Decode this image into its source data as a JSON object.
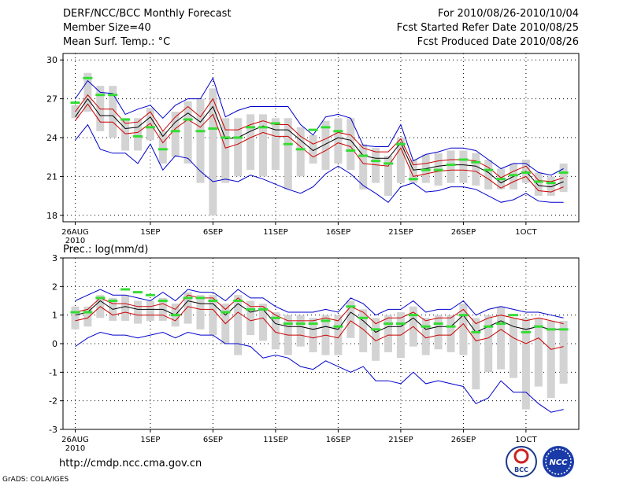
{
  "header": {
    "title": "DERF/NCC/BCC Monthly Forecast",
    "member_size": "Member Size=40",
    "variable": "Mean Surf. Temp.: °C",
    "period": "For 2010/08/26-2010/10/04",
    "started": "Fcst Started Refer Date 2010/08/25",
    "produced": "Fcst Produced Date 2010/08/26"
  },
  "footer": {
    "url": "http://cmdp.ncc.cma.gov.cn",
    "credit": "GrADS: COLA/IGES"
  },
  "logos": {
    "bcc": "BCC",
    "ncc": "NCC"
  },
  "colors": {
    "ensemble": "#000000",
    "spread": "#cc0000",
    "extreme": "#0000cc",
    "box": "#d3d3d3",
    "median": "#33dd33"
  },
  "chart_data": [
    {
      "type": "line",
      "title": "Mean Surf. Temp.: °C",
      "ylim": [
        17.5,
        30.5
      ],
      "yticks": [
        18,
        21,
        24,
        27,
        30
      ],
      "xticks": [
        {
          "day": 1,
          "label": "26AUG",
          "sub": "2010"
        },
        {
          "day": 7,
          "label": "1SEP"
        },
        {
          "day": 12,
          "label": "6SEP"
        },
        {
          "day": 17,
          "label": "11SEP"
        },
        {
          "day": 22,
          "label": "16SEP"
        },
        {
          "day": 27,
          "label": "21SEP"
        },
        {
          "day": 32,
          "label": "26SEP"
        },
        {
          "day": 37,
          "label": "1OCT"
        }
      ],
      "days": 40,
      "series": [
        {
          "name": "ensemble mean",
          "values": [
            25.6,
            27.0,
            25.7,
            25.7,
            24.7,
            24.8,
            25.6,
            24.1,
            25.2,
            25.9,
            25.2,
            26.4,
            23.9,
            24.0,
            24.5,
            24.9,
            24.6,
            24.6,
            23.8,
            23.0,
            23.5,
            24.0,
            23.8,
            22.6,
            22.4,
            22.4,
            23.6,
            21.5,
            21.6,
            21.8,
            21.9,
            21.9,
            21.8,
            21.3,
            20.5,
            21.0,
            21.4,
            20.3,
            20.2,
            20.6
          ]
        },
        {
          "name": "upper spread",
          "values": [
            26.0,
            27.3,
            26.2,
            26.2,
            25.1,
            25.2,
            26.0,
            24.5,
            25.6,
            26.4,
            25.6,
            27.0,
            24.6,
            24.6,
            25.0,
            25.3,
            25.0,
            25.0,
            24.1,
            23.5,
            23.9,
            24.4,
            24.2,
            23.2,
            22.9,
            22.9,
            23.9,
            21.9,
            22.0,
            22.2,
            22.3,
            22.3,
            22.2,
            21.7,
            20.9,
            21.4,
            21.8,
            20.7,
            20.6,
            20.9
          ]
        },
        {
          "name": "lower spread",
          "values": [
            25.3,
            26.6,
            25.2,
            25.2,
            24.3,
            24.4,
            25.1,
            23.6,
            24.7,
            25.4,
            24.8,
            25.8,
            23.2,
            23.5,
            24.0,
            24.4,
            24.1,
            24.1,
            23.3,
            22.5,
            23.0,
            23.6,
            23.3,
            22.0,
            21.9,
            21.8,
            23.2,
            21.0,
            21.2,
            21.4,
            21.5,
            21.5,
            21.4,
            20.8,
            20.1,
            20.6,
            21.0,
            19.9,
            19.8,
            20.2
          ]
        },
        {
          "name": "maximum",
          "values": [
            27.0,
            28.4,
            27.5,
            27.4,
            25.8,
            26.2,
            26.5,
            25.5,
            26.5,
            27.0,
            27.0,
            28.6,
            25.6,
            26.1,
            26.4,
            26.4,
            26.4,
            26.4,
            25.0,
            24.2,
            25.6,
            25.8,
            25.5,
            23.4,
            23.3,
            23.3,
            25.0,
            22.2,
            22.7,
            22.9,
            23.2,
            23.2,
            23.0,
            22.3,
            21.6,
            22.0,
            22.0,
            21.3,
            21.1,
            21.6
          ]
        },
        {
          "name": "minimum",
          "values": [
            23.8,
            25.0,
            23.1,
            22.8,
            22.8,
            22.0,
            23.5,
            21.5,
            22.6,
            22.4,
            21.4,
            20.6,
            20.8,
            20.6,
            21.1,
            20.8,
            20.4,
            20.0,
            19.7,
            20.2,
            21.2,
            21.8,
            21.2,
            20.3,
            19.7,
            19.0,
            20.2,
            20.5,
            19.8,
            19.9,
            20.2,
            20.2,
            20.0,
            19.5,
            19.0,
            19.2,
            19.7,
            19.1,
            19.0,
            19.0
          ]
        }
      ],
      "boxes": {
        "high": [
          26.5,
          29.0,
          28.0,
          28.0,
          25.5,
          25.5,
          26.3,
          24.5,
          26.0,
          26.8,
          27.0,
          27.8,
          25.5,
          25.5,
          25.8,
          25.8,
          25.5,
          25.5,
          24.8,
          24.2,
          25.3,
          25.5,
          25.5,
          23.5,
          23.2,
          22.6,
          24.0,
          22.3,
          22.7,
          22.8,
          23.0,
          23.0,
          22.8,
          22.3,
          21.6,
          22.0,
          22.3,
          21.3,
          21.0,
          22.0
        ],
        "low": [
          25.5,
          26.0,
          24.5,
          24.0,
          23.0,
          23.0,
          23.8,
          22.0,
          22.5,
          22.0,
          20.5,
          18.0,
          20.5,
          21.0,
          21.5,
          21.0,
          21.5,
          20.0,
          21.0,
          22.0,
          21.5,
          22.0,
          21.5,
          20.0,
          20.5,
          19.5,
          20.5,
          20.5,
          20.5,
          20.3,
          20.5,
          20.5,
          20.3,
          20.0,
          20.0,
          20.0,
          20.5,
          19.5,
          19.5,
          19.8
        ],
        "median": [
          26.7,
          28.6,
          27.3,
          27.3,
          25.4,
          24.1,
          24.8,
          23.1,
          24.5,
          25.4,
          24.5,
          24.7,
          24.0,
          24.0,
          24.8,
          24.8,
          25.1,
          23.5,
          23.1,
          24.6,
          24.8,
          24.5,
          23.0,
          22.6,
          22.2,
          22.0,
          23.5,
          20.8,
          21.5,
          21.5,
          21.9,
          22.3,
          22.1,
          21.5,
          20.8,
          21.1,
          21.3,
          20.6,
          20.5,
          21.3
        ]
      }
    },
    {
      "type": "line",
      "title": "Prec.: log(mm/d)",
      "ylim": [
        -3,
        3
      ],
      "yticks": [
        -3,
        -2,
        -1,
        0,
        1,
        2,
        3
      ],
      "xticks": [
        {
          "day": 1,
          "label": "26AUG",
          "sub": "2010"
        },
        {
          "day": 7,
          "label": "1SEP"
        },
        {
          "day": 12,
          "label": "6SEP"
        },
        {
          "day": 17,
          "label": "11SEP"
        },
        {
          "day": 22,
          "label": "16SEP"
        },
        {
          "day": 27,
          "label": "21SEP"
        },
        {
          "day": 32,
          "label": "26SEP"
        },
        {
          "day": 37,
          "label": "1OCT"
        }
      ],
      "days": 40,
      "series": [
        {
          "name": "ensemble mean",
          "values": [
            1.0,
            1.1,
            1.5,
            1.2,
            1.3,
            1.2,
            1.2,
            1.2,
            1.0,
            1.5,
            1.4,
            1.4,
            1.0,
            1.4,
            1.1,
            1.2,
            0.7,
            0.6,
            0.6,
            0.5,
            0.6,
            0.5,
            1.1,
            0.8,
            0.4,
            0.6,
            0.6,
            0.9,
            0.5,
            0.6,
            0.6,
            1.0,
            0.4,
            0.6,
            0.8,
            0.6,
            0.5,
            0.6,
            0.5,
            0.5
          ]
        },
        {
          "name": "upper spread",
          "values": [
            1.1,
            1.2,
            1.6,
            1.4,
            1.4,
            1.3,
            1.3,
            1.4,
            1.2,
            1.7,
            1.6,
            1.6,
            1.2,
            1.6,
            1.3,
            1.3,
            1.0,
            0.8,
            0.8,
            0.8,
            0.9,
            0.8,
            1.3,
            1.1,
            0.7,
            0.9,
            0.9,
            1.1,
            0.8,
            0.9,
            0.9,
            1.2,
            0.7,
            0.9,
            1.0,
            0.9,
            0.8,
            0.9,
            0.8,
            0.7
          ]
        },
        {
          "name": "lower spread",
          "values": [
            0.8,
            0.9,
            1.3,
            1.0,
            1.1,
            1.0,
            1.0,
            1.0,
            0.8,
            1.3,
            1.2,
            1.2,
            0.7,
            1.1,
            0.8,
            0.9,
            0.4,
            0.3,
            0.3,
            0.2,
            0.3,
            0.2,
            0.8,
            0.5,
            0.1,
            0.3,
            0.3,
            0.6,
            0.2,
            0.3,
            0.3,
            0.7,
            0.1,
            0.2,
            0.5,
            0.2,
            0.0,
            0.2,
            -0.2,
            -0.1
          ]
        },
        {
          "name": "maximum",
          "values": [
            1.5,
            1.7,
            1.9,
            1.7,
            1.7,
            1.6,
            1.5,
            1.8,
            1.5,
            1.9,
            1.8,
            1.8,
            1.5,
            1.9,
            1.6,
            1.6,
            1.3,
            1.1,
            1.1,
            1.1,
            1.2,
            1.1,
            1.6,
            1.4,
            1.0,
            1.2,
            1.2,
            1.5,
            1.1,
            1.2,
            1.2,
            1.5,
            1.0,
            1.2,
            1.3,
            1.2,
            1.1,
            1.1,
            1.0,
            0.9
          ]
        },
        {
          "name": "minimum",
          "values": [
            -0.1,
            0.2,
            0.4,
            0.3,
            0.3,
            0.2,
            0.3,
            0.4,
            0.2,
            0.4,
            0.3,
            0.3,
            0.0,
            0.0,
            -0.1,
            -0.5,
            -0.4,
            -0.5,
            -0.8,
            -0.9,
            -0.6,
            -0.8,
            -1.0,
            -0.8,
            -1.3,
            -1.3,
            -1.4,
            -1.0,
            -1.4,
            -1.3,
            -1.4,
            -1.5,
            -2.1,
            -1.9,
            -1.3,
            -1.7,
            -1.7,
            -2.1,
            -2.4,
            -2.3
          ]
        }
      ],
      "boxes": {
        "high": [
          1.3,
          1.3,
          1.7,
          1.6,
          1.7,
          1.5,
          1.5,
          1.6,
          1.4,
          1.8,
          1.7,
          1.7,
          1.4,
          1.7,
          1.5,
          1.4,
          1.1,
          1.0,
          1.0,
          0.9,
          1.0,
          1.0,
          1.5,
          1.2,
          0.9,
          1.0,
          1.1,
          1.3,
          0.9,
          1.0,
          1.0,
          1.4,
          0.9,
          1.0,
          1.3,
          0.9,
          0.9,
          0.9,
          0.8,
          0.8
        ],
        "low": [
          0.5,
          0.6,
          0.9,
          0.8,
          0.8,
          0.7,
          0.8,
          0.8,
          0.6,
          0.7,
          0.5,
          0.3,
          0.0,
          -0.4,
          0.3,
          0.1,
          -0.2,
          -0.4,
          -0.1,
          -0.3,
          -0.4,
          -0.4,
          0.2,
          -0.3,
          -0.6,
          -0.3,
          -0.5,
          -0.1,
          -0.4,
          -0.2,
          -0.3,
          -0.4,
          -1.6,
          -1.0,
          -0.9,
          -1.2,
          -2.3,
          -1.5,
          -1.9,
          -1.4
        ],
        "median": [
          1.1,
          1.1,
          1.6,
          1.5,
          1.9,
          1.8,
          1.7,
          1.5,
          1.0,
          1.6,
          1.6,
          1.5,
          1.1,
          1.5,
          1.2,
          1.2,
          0.9,
          0.7,
          0.7,
          0.7,
          0.8,
          0.6,
          1.3,
          0.9,
          0.5,
          0.7,
          0.7,
          1.0,
          0.6,
          0.7,
          0.6,
          1.0,
          0.4,
          0.6,
          0.7,
          1.0,
          0.4,
          0.6,
          0.5,
          0.5
        ]
      }
    }
  ]
}
